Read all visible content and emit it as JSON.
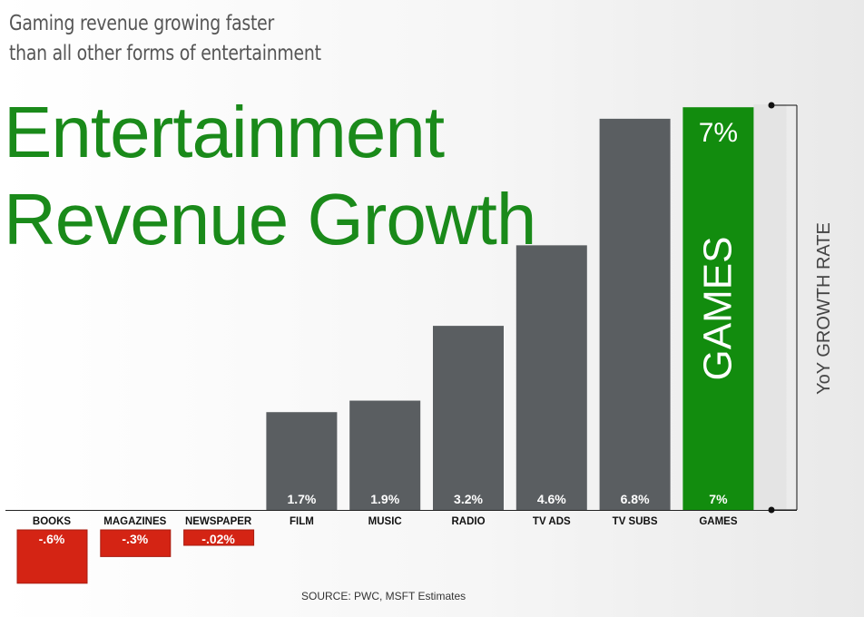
{
  "header": {
    "subtitle_line1": "Gaming revenue growing faster",
    "subtitle_line2": "than all other forms of entertainment",
    "title_line1": "Entertainment",
    "title_line2": "Revenue Growth"
  },
  "source": "SOURCE: PWC, MSFT Estimates",
  "chart_data": {
    "type": "bar",
    "title": "Entertainment Revenue Growth",
    "categories": [
      "BOOKS",
      "MAGAZINES",
      "NEWSPAPER",
      "FILM",
      "MUSIC",
      "RADIO",
      "TV ADS",
      "TV SUBS",
      "GAMES"
    ],
    "values": [
      -0.6,
      -0.3,
      -0.02,
      1.7,
      1.9,
      3.2,
      4.6,
      6.8,
      7.0
    ],
    "data_labels": [
      "-.6%",
      "-.3%",
      "-.02%",
      "1.7%",
      "1.9%",
      "3.2%",
      "4.6%",
      "6.8%",
      "7%"
    ],
    "highlight": {
      "category": "GAMES",
      "label": "GAMES",
      "top_label": "7%"
    },
    "ylabel": "YoY GROWTH RATE",
    "colors": {
      "positive": "#5a5e61",
      "negative": "#d42414",
      "highlight": "#128c0e",
      "title": "#1a8a1a"
    }
  }
}
